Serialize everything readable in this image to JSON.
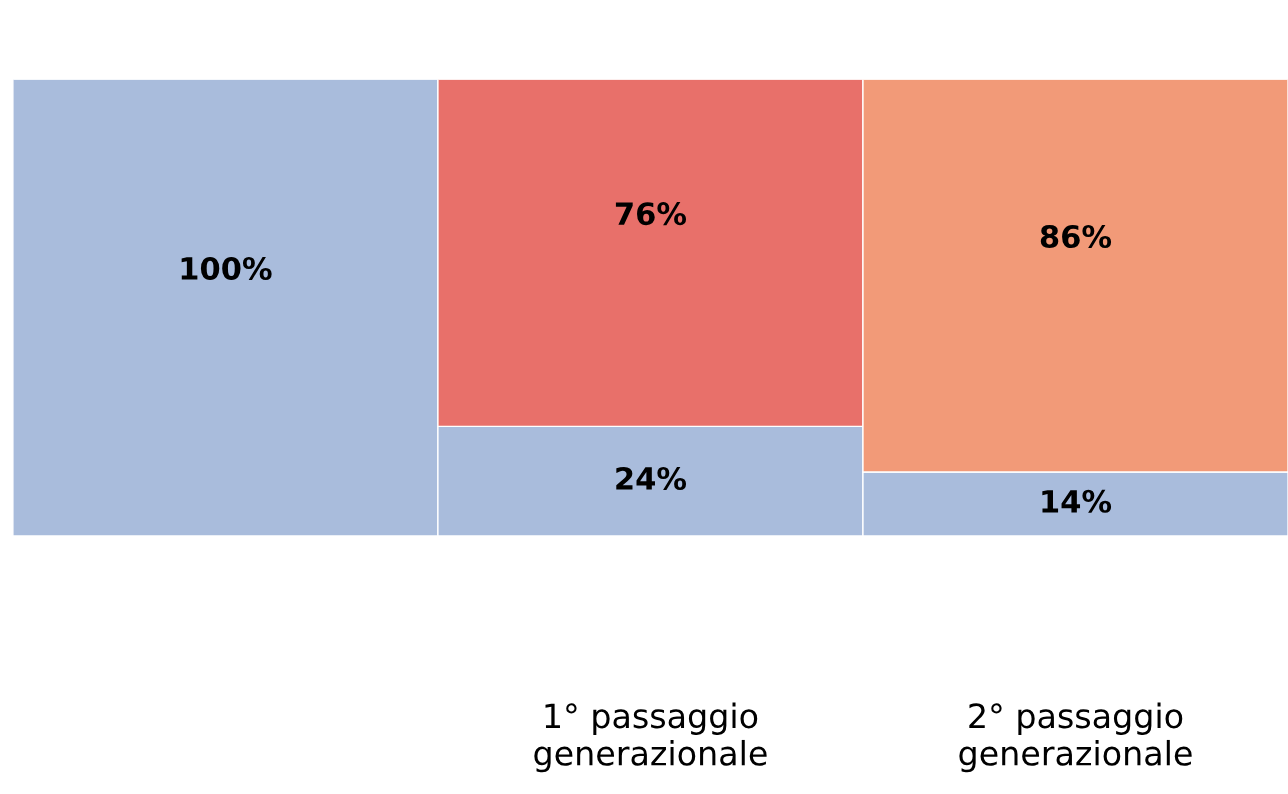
{
  "chart_data": {
    "type": "bar",
    "stacked": true,
    "categories": [
      null,
      "1° passaggio generazionale",
      "2° passaggio generazionale"
    ],
    "series": [
      {
        "colors": [
          "#a9bcdc",
          "#a9bcdc",
          "#a9bcdc"
        ],
        "values": [
          100,
          24,
          14
        ],
        "value_labels": [
          "100%",
          "24%",
          "14%"
        ]
      },
      {
        "colors": [
          null,
          "#e8706a",
          "#f29a78"
        ],
        "values": [
          null,
          76,
          86
        ],
        "value_labels": [
          null,
          "76%",
          "86%"
        ]
      }
    ],
    "tick_labels": "x",
    "grid": false,
    "legend": false
  }
}
